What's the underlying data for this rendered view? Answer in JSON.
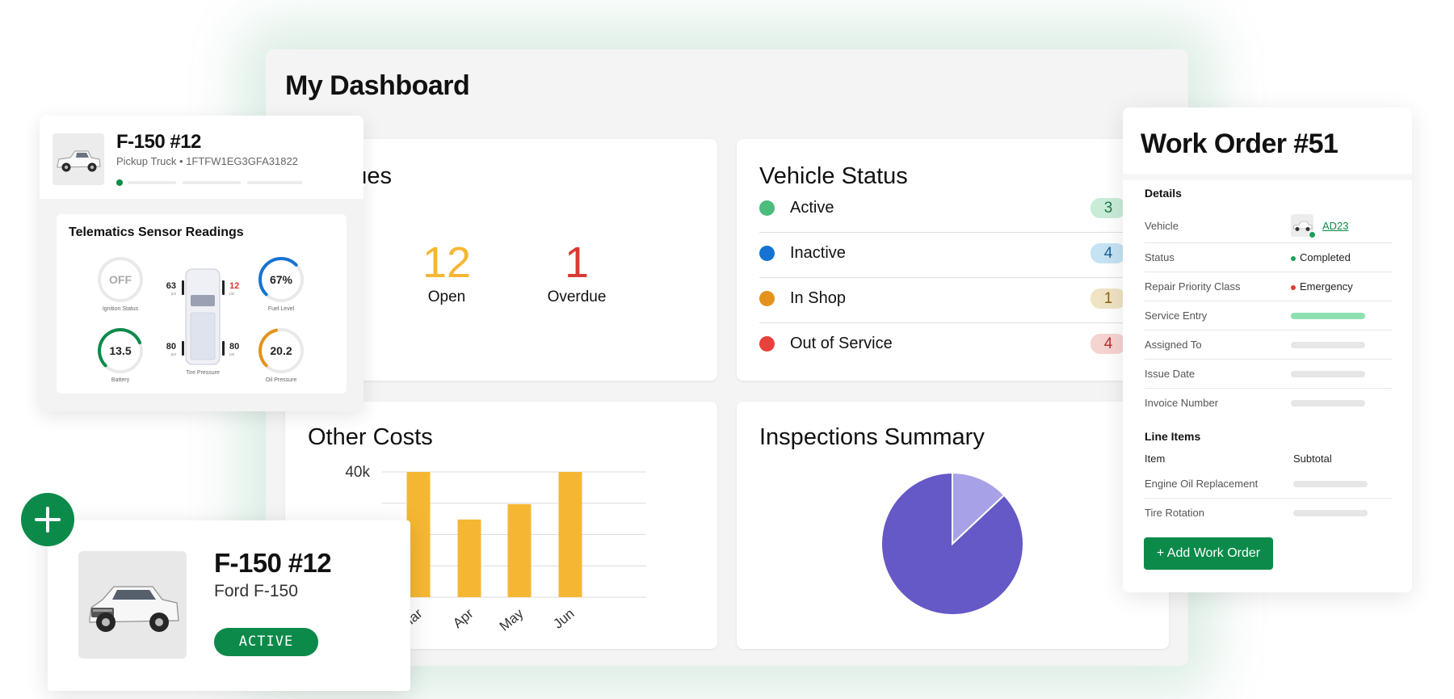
{
  "dashboard": {
    "title": "My Dashboard",
    "issues": {
      "title": "n Issues",
      "open_value": "12",
      "open_label": "Open",
      "overdue_value": "1",
      "overdue_label": "Overdue"
    },
    "vehicle_status": {
      "title": "Vehicle Status",
      "rows": [
        {
          "label": "Active",
          "count": "3",
          "color": "#4dbb7b",
          "badge_bg": "#c9ecd7",
          "badge_fg": "#1b7a45"
        },
        {
          "label": "Inactive",
          "count": "4",
          "color": "#1673d1",
          "badge_bg": "#c5e3f3",
          "badge_fg": "#1a5f94"
        },
        {
          "label": "In Shop",
          "count": "1",
          "color": "#e3931c",
          "badge_bg": "#f0e3c4",
          "badge_fg": "#8a6410"
        },
        {
          "label": "Out of Service",
          "count": "4",
          "color": "#e8403b",
          "badge_bg": "#f5d3d1",
          "badge_fg": "#b3312c"
        }
      ]
    },
    "other_costs": {
      "title": "Other Costs",
      "y_tick": "40k"
    },
    "inspections": {
      "title": "Inspections Summary"
    }
  },
  "chart_data": [
    {
      "type": "bar",
      "title": "Other Costs",
      "categories": [
        "Mar",
        "Apr",
        "May",
        "Jun"
      ],
      "values": [
        40000,
        24800,
        29700,
        40000
      ],
      "ylim": [
        0,
        40000
      ],
      "y_ticks": [
        "40k"
      ],
      "grid": true,
      "color": "#f5b733"
    },
    {
      "type": "pie",
      "title": "Inspections Summary",
      "slices": [
        {
          "value": 13,
          "color": "#a7a2e8"
        },
        {
          "value": 87,
          "color": "#6459c6"
        }
      ]
    }
  ],
  "telematics": {
    "vehicle_name": "F-150 #12",
    "subtitle": "Pickup Truck • 1FTFW1EG3GFA31822",
    "panel_title": "Telematics Sensor Readings",
    "ignition": {
      "value": "OFF",
      "label": "Ignition Status"
    },
    "fuel": {
      "value": "67%",
      "label": "Fuel Level",
      "level": 0.67,
      "color": "#1673d1"
    },
    "battery": {
      "value": "13.5",
      "label": "Battery",
      "level": 0.75,
      "color": "#0c8a4a"
    },
    "oil": {
      "value": "20.2",
      "label": "Oil Pressure",
      "level": 0.45,
      "color": "#e3931c"
    },
    "tire": {
      "label": "Tire Pressure",
      "front_left": "63",
      "front_right": "12",
      "rear_left": "80",
      "rear_right": "80",
      "unit": "psi"
    }
  },
  "work_order": {
    "title": "Work Order #51",
    "details_heading": "Details",
    "vehicle_label": "Vehicle",
    "vehicle_value": "AD23",
    "status_label": "Status",
    "status_value": "Completed",
    "priority_label": "Repair Priority Class",
    "priority_value": "Emergency",
    "service_entry_label": "Service Entry",
    "assigned_label": "Assigned To",
    "issue_date_label": "Issue Date",
    "invoice_label": "Invoice Number",
    "line_items_heading": "Line Items",
    "col_item": "Item",
    "col_subtotal": "Subtotal",
    "line_items": [
      "Engine Oil Replacement",
      "Tire Rotation"
    ],
    "add_button": "+ Add Work Order"
  },
  "vehicle_card": {
    "name": "F-150 #12",
    "model": "Ford F-150",
    "badge": "ACTIVE"
  }
}
